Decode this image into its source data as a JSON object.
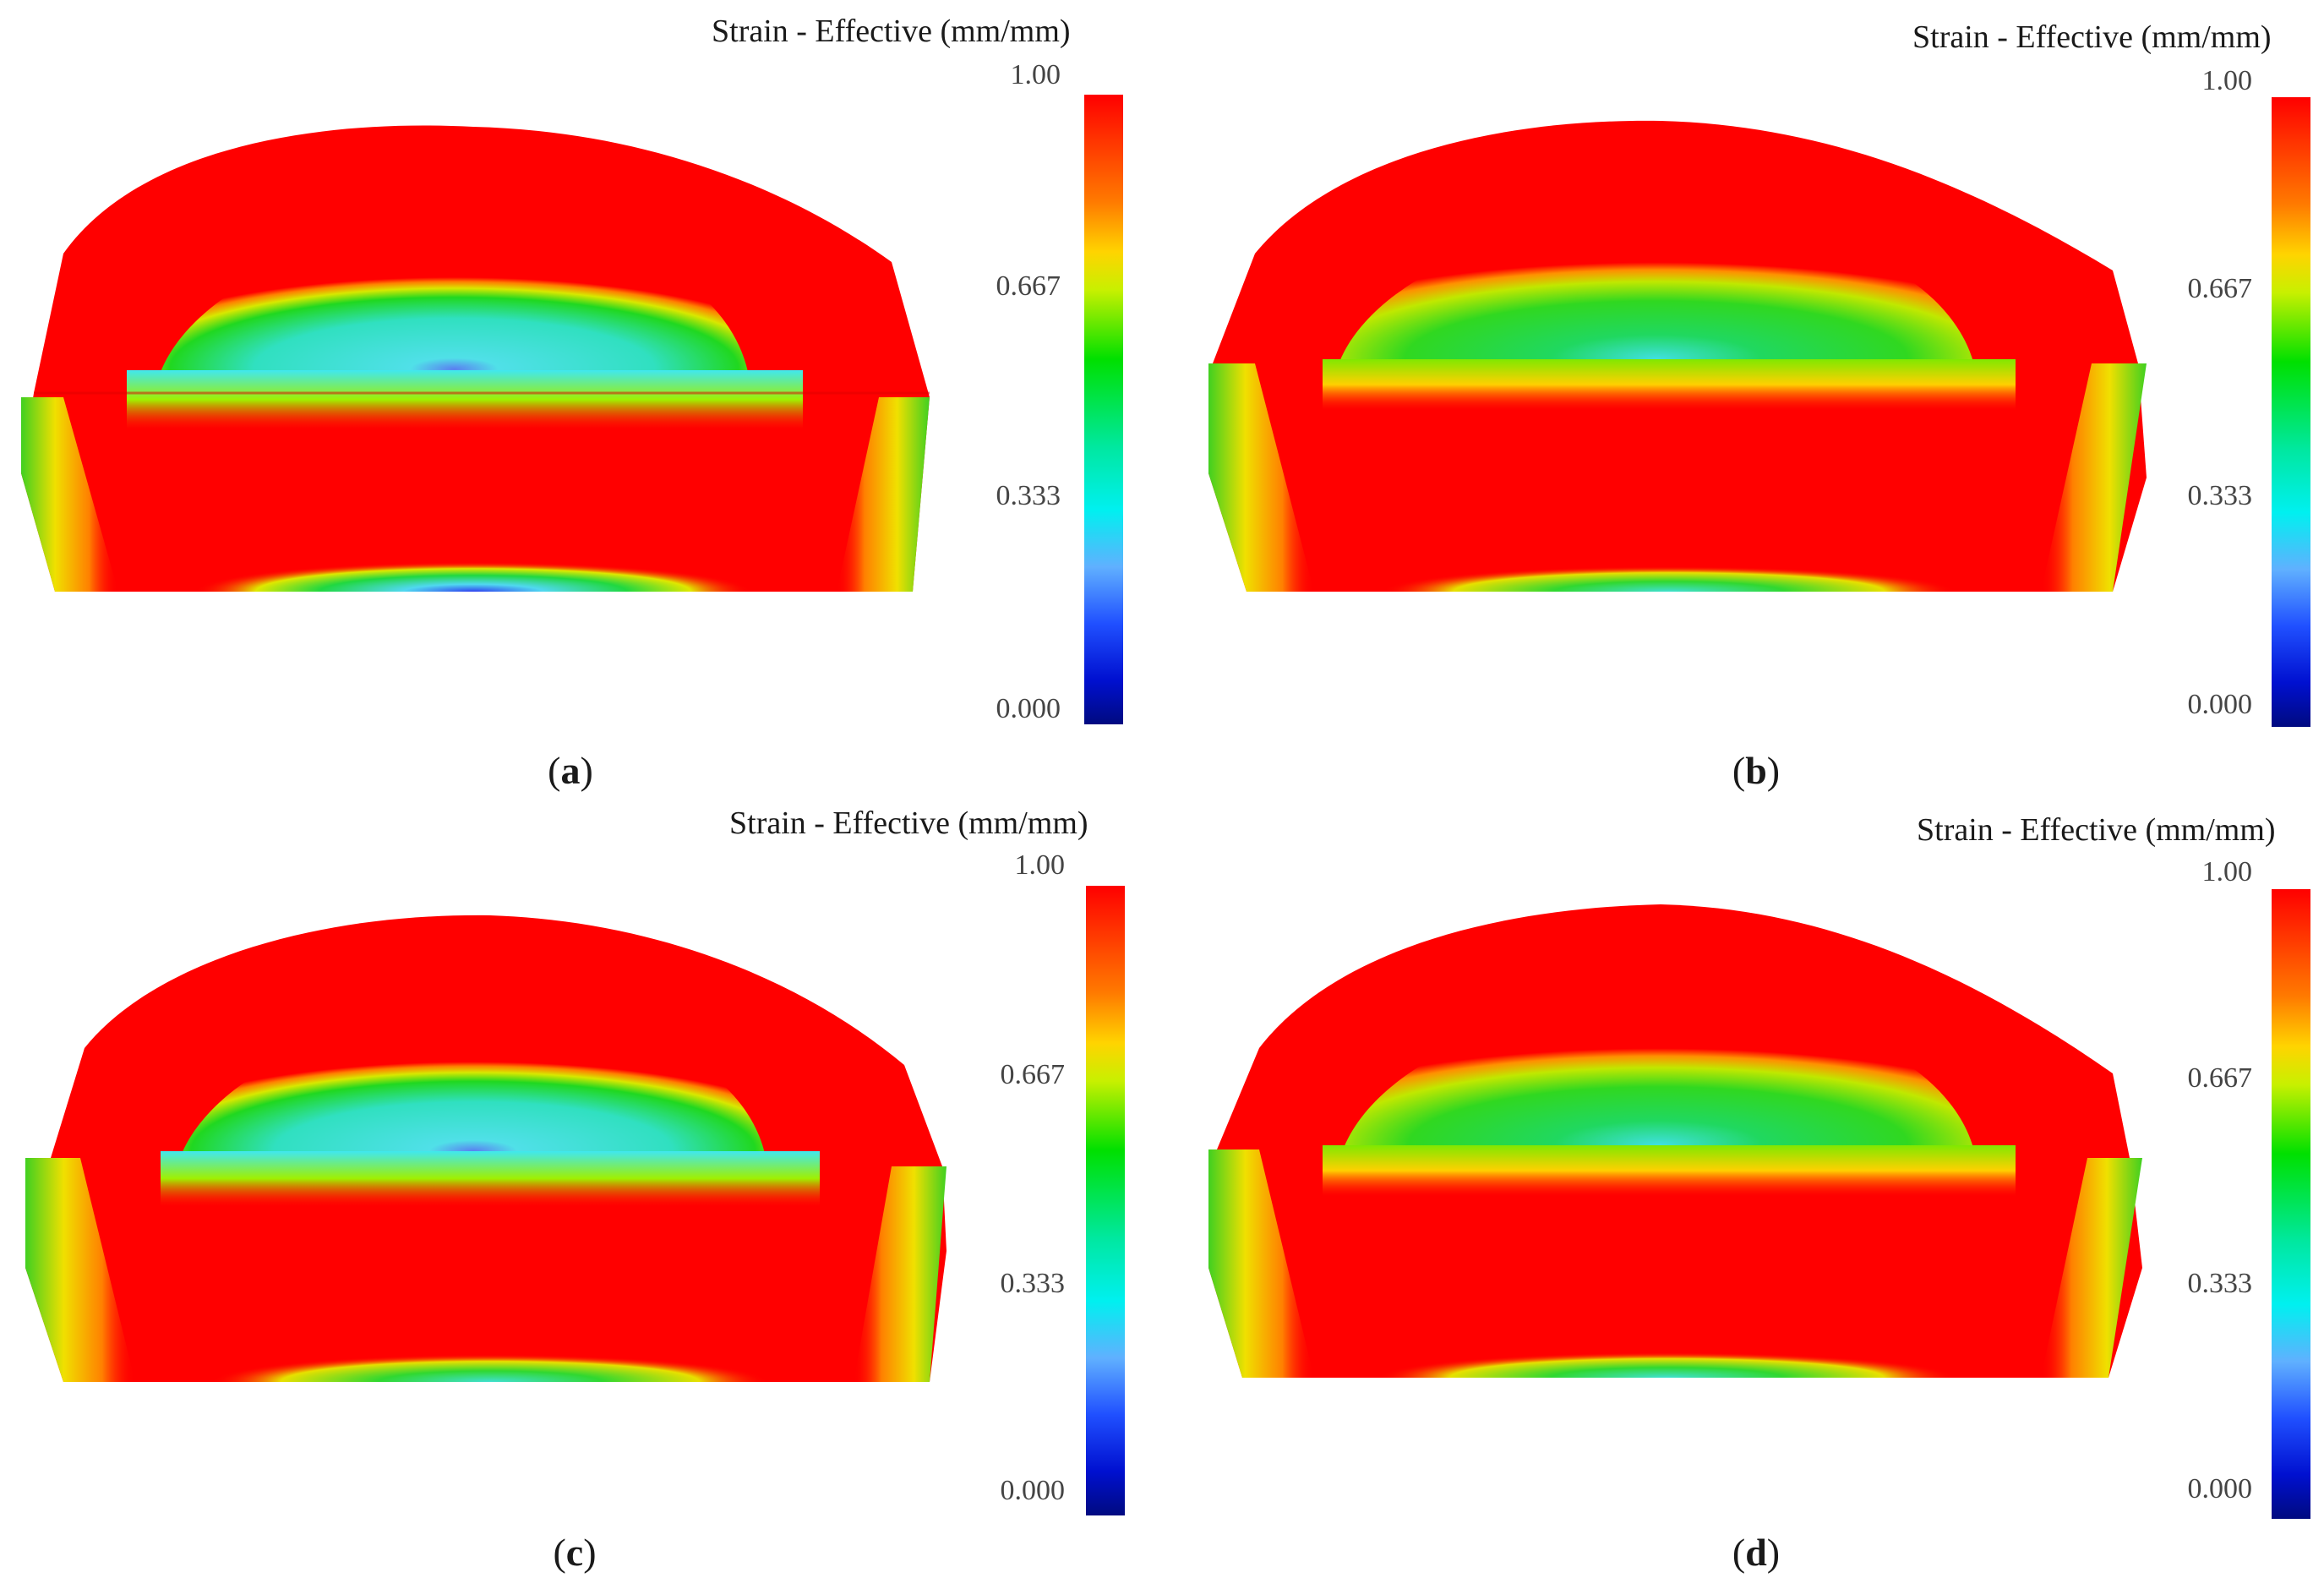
{
  "panels": [
    {
      "id": "a",
      "legend_title": "Strain - Effective (mm/mm)",
      "ticks": [
        "1.00",
        "0.667",
        "0.333",
        "0.000"
      ],
      "caption_open": "(",
      "caption_letter": "a",
      "caption_close": ")"
    },
    {
      "id": "b",
      "legend_title": "Strain - Effective (mm/mm)",
      "ticks": [
        "1.00",
        "0.667",
        "0.333",
        "0.000"
      ],
      "caption_open": "(",
      "caption_letter": "b",
      "caption_close": ")"
    },
    {
      "id": "c",
      "legend_title": "Strain - Effective (mm/mm)",
      "ticks": [
        "1.00",
        "0.667",
        "0.333",
        "0.000"
      ],
      "caption_open": "(",
      "caption_letter": "c",
      "caption_close": ")"
    },
    {
      "id": "d",
      "legend_title": "Strain - Effective (mm/mm)",
      "ticks": [
        "1.00",
        "0.667",
        "0.333",
        "0.000"
      ],
      "caption_open": "(",
      "caption_letter": "d",
      "caption_close": ")"
    }
  ],
  "colors": {
    "high": "#ff0000",
    "orange": "#ff8c00",
    "yellow": "#f0e000",
    "green": "#22d822",
    "cyan": "#40e0e0",
    "blue": "#3050ff"
  }
}
